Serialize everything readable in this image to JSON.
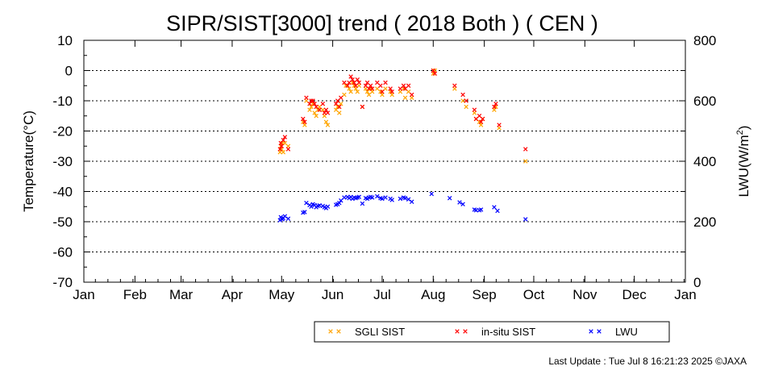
{
  "chart_data": {
    "type": "scatter",
    "title": "SIPR/SIST[3000] trend ( 2018 Both ) ( CEN )",
    "ylabel": "Temperature(°C)",
    "y2label_main": "LWU(W/m",
    "y2label_sup": "2",
    "y2label_tail": ")",
    "xlim": [
      0,
      365
    ],
    "ylim": [
      -70,
      10
    ],
    "y2lim": [
      0,
      800
    ],
    "grid": "horizontal-dotted",
    "legend_position": "bottom-right",
    "x_ticks": [
      {
        "day": 0,
        "label": "Jan"
      },
      {
        "day": 31,
        "label": "Feb"
      },
      {
        "day": 59,
        "label": "Mar"
      },
      {
        "day": 90,
        "label": "Apr"
      },
      {
        "day": 120,
        "label": "May"
      },
      {
        "day": 151,
        "label": "Jun"
      },
      {
        "day": 181,
        "label": "Jul"
      },
      {
        "day": 212,
        "label": "Aug"
      },
      {
        "day": 243,
        "label": "Sep"
      },
      {
        "day": 273,
        "label": "Oct"
      },
      {
        "day": 304,
        "label": "Nov"
      },
      {
        "day": 334,
        "label": "Dec"
      },
      {
        "day": 365,
        "label": "Jan"
      }
    ],
    "y_ticks": [
      {
        "v": 10,
        "label": "10"
      },
      {
        "v": 0,
        "label": "0"
      },
      {
        "v": -10,
        "label": "-10"
      },
      {
        "v": -20,
        "label": "-20"
      },
      {
        "v": -30,
        "label": "-30"
      },
      {
        "v": -40,
        "label": "-40"
      },
      {
        "v": -50,
        "label": "-50"
      },
      {
        "v": -60,
        "label": "-60"
      },
      {
        "v": -70,
        "label": "-70"
      }
    ],
    "y2_ticks": [
      {
        "v": 800,
        "label": "800"
      },
      {
        "v": 600,
        "label": "600"
      },
      {
        "v": 400,
        "label": "400"
      },
      {
        "v": 200,
        "label": "200"
      },
      {
        "v": 0,
        "label": "0"
      }
    ],
    "series": [
      {
        "name": "SGLI SIST",
        "axis": "left",
        "color": "#ffa500",
        "points": [
          [
            119,
            -27
          ],
          [
            119.5,
            -25
          ],
          [
            120,
            -26
          ],
          [
            120.5,
            -24
          ],
          [
            121,
            -27
          ],
          [
            122,
            -24
          ],
          [
            124,
            -25
          ],
          [
            133,
            -17
          ],
          [
            134,
            -18
          ],
          [
            135,
            -10
          ],
          [
            137,
            -13
          ],
          [
            138,
            -12
          ],
          [
            139,
            -11
          ],
          [
            140,
            -14
          ],
          [
            141,
            -15
          ],
          [
            142,
            -13
          ],
          [
            143,
            -12
          ],
          [
            145,
            -13
          ],
          [
            146,
            -15
          ],
          [
            147,
            -17
          ],
          [
            148,
            -18
          ],
          [
            153,
            -13
          ],
          [
            154,
            -12
          ],
          [
            155,
            -14
          ],
          [
            156,
            -11
          ],
          [
            158,
            -8
          ],
          [
            159,
            -5
          ],
          [
            161,
            -6
          ],
          [
            162,
            -7
          ],
          [
            163,
            -4
          ],
          [
            164,
            -5
          ],
          [
            165,
            -6
          ],
          [
            166,
            -7
          ],
          [
            167,
            -5
          ],
          [
            169,
            -12
          ],
          [
            171,
            -6
          ],
          [
            172,
            -7
          ],
          [
            173,
            -8
          ],
          [
            174,
            -6
          ],
          [
            175,
            -7
          ],
          [
            178,
            -6
          ],
          [
            180,
            -7
          ],
          [
            181,
            -8
          ],
          [
            183,
            -6
          ],
          [
            186,
            -7
          ],
          [
            187,
            -8
          ],
          [
            192,
            -7
          ],
          [
            194,
            -6
          ],
          [
            195,
            -9
          ],
          [
            197,
            -7
          ],
          [
            199,
            -9
          ],
          [
            212,
            -1
          ],
          [
            213,
            0
          ],
          [
            225,
            -6
          ],
          [
            230,
            -10
          ],
          [
            232,
            -12
          ],
          [
            237,
            -14
          ],
          [
            238,
            -16
          ],
          [
            240,
            -17
          ],
          [
            241,
            -18
          ],
          [
            242,
            -16
          ],
          [
            249,
            -13
          ],
          [
            250,
            -12
          ],
          [
            252,
            -19
          ],
          [
            268,
            -30
          ]
        ]
      },
      {
        "name": "in-situ SIST",
        "axis": "left",
        "color": "#ff0000",
        "points": [
          [
            119,
            -26
          ],
          [
            119.5,
            -24
          ],
          [
            120,
            -25
          ],
          [
            121,
            -23
          ],
          [
            122,
            -22
          ],
          [
            124,
            -26
          ],
          [
            133,
            -16
          ],
          [
            134,
            -17
          ],
          [
            135,
            -9
          ],
          [
            137,
            -11
          ],
          [
            138,
            -10
          ],
          [
            139,
            -10
          ],
          [
            140,
            -11
          ],
          [
            141,
            -12
          ],
          [
            143,
            -13
          ],
          [
            145,
            -11
          ],
          [
            146,
            -14
          ],
          [
            147,
            -13
          ],
          [
            148,
            -14
          ],
          [
            153,
            -11
          ],
          [
            154,
            -10
          ],
          [
            155,
            -12
          ],
          [
            156,
            -9
          ],
          [
            158,
            -4
          ],
          [
            160,
            -5
          ],
          [
            161,
            -4
          ],
          [
            162,
            -2
          ],
          [
            163,
            -3
          ],
          [
            164,
            -4
          ],
          [
            165,
            -5
          ],
          [
            166,
            -3
          ],
          [
            167,
            -4
          ],
          [
            169,
            -12
          ],
          [
            171,
            -5
          ],
          [
            172,
            -4
          ],
          [
            173,
            -6
          ],
          [
            174,
            -5
          ],
          [
            175,
            -6
          ],
          [
            178,
            -4
          ],
          [
            180,
            -5
          ],
          [
            181,
            -7
          ],
          [
            183,
            -4
          ],
          [
            186,
            -6
          ],
          [
            187,
            -7
          ],
          [
            192,
            -6
          ],
          [
            194,
            -5
          ],
          [
            195,
            -6
          ],
          [
            197,
            -5
          ],
          [
            199,
            -8
          ],
          [
            212,
            0
          ],
          [
            213,
            -1
          ],
          [
            225,
            -5
          ],
          [
            230,
            -8
          ],
          [
            232,
            -10
          ],
          [
            237,
            -13
          ],
          [
            238,
            -16
          ],
          [
            240,
            -15
          ],
          [
            241,
            -17
          ],
          [
            242,
            -16
          ],
          [
            249,
            -12
          ],
          [
            250,
            -11
          ],
          [
            252,
            -18
          ],
          [
            268,
            -26
          ]
        ]
      },
      {
        "name": "LWU",
        "axis": "right",
        "color": "#0000ff",
        "points": [
          [
            119,
            205
          ],
          [
            119.5,
            215
          ],
          [
            120,
            210
          ],
          [
            120.5,
            208
          ],
          [
            121,
            212
          ],
          [
            122,
            218
          ],
          [
            124,
            210
          ],
          [
            133,
            230
          ],
          [
            134,
            232
          ],
          [
            135,
            262
          ],
          [
            137,
            255
          ],
          [
            138,
            250
          ],
          [
            139,
            258
          ],
          [
            140,
            255
          ],
          [
            141,
            248
          ],
          [
            142,
            252
          ],
          [
            143,
            254
          ],
          [
            145,
            252
          ],
          [
            146,
            248
          ],
          [
            147,
            245
          ],
          [
            148,
            250
          ],
          [
            153,
            256
          ],
          [
            154,
            258
          ],
          [
            155,
            262
          ],
          [
            156,
            270
          ],
          [
            158,
            280
          ],
          [
            160,
            282
          ],
          [
            161,
            278
          ],
          [
            162,
            282
          ],
          [
            163,
            276
          ],
          [
            164,
            280
          ],
          [
            165,
            278
          ],
          [
            166,
            280
          ],
          [
            167,
            282
          ],
          [
            169,
            260
          ],
          [
            171,
            278
          ],
          [
            172,
            276
          ],
          [
            173,
            280
          ],
          [
            174,
            282
          ],
          [
            175,
            280
          ],
          [
            178,
            284
          ],
          [
            180,
            278
          ],
          [
            181,
            276
          ],
          [
            183,
            280
          ],
          [
            186,
            276
          ],
          [
            187,
            272
          ],
          [
            192,
            276
          ],
          [
            194,
            280
          ],
          [
            195,
            278
          ],
          [
            197,
            274
          ],
          [
            199,
            266
          ],
          [
            211,
            292
          ],
          [
            222,
            278
          ],
          [
            228,
            264
          ],
          [
            230,
            258
          ],
          [
            237,
            240
          ],
          [
            238,
            238
          ],
          [
            240,
            238
          ],
          [
            241,
            240
          ],
          [
            249,
            248
          ],
          [
            251,
            236
          ],
          [
            268,
            208
          ]
        ]
      }
    ]
  },
  "legend": {
    "items": [
      {
        "label": "SGLI SIST",
        "color": "#ffa500"
      },
      {
        "label": "in-situ SIST",
        "color": "#ff0000"
      },
      {
        "label": "LWU",
        "color": "#0000ff"
      }
    ]
  },
  "footer": {
    "text": "Last Update : Tue Jul  8 16:21:23 2025  ©JAXA"
  }
}
